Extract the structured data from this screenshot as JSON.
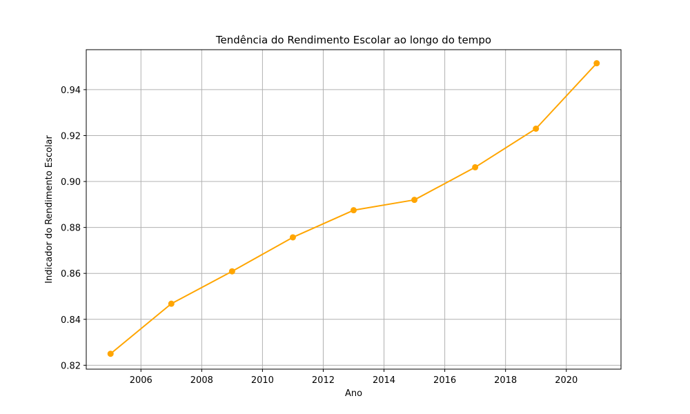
{
  "chart_data": {
    "type": "line",
    "title": "Tendência do Rendimento Escolar ao longo do tempo",
    "xlabel": "Ano",
    "ylabel": "Indicador do Rendimento Escolar",
    "x": [
      2005,
      2007,
      2009,
      2011,
      2013,
      2015,
      2017,
      2019,
      2021
    ],
    "series": [
      {
        "values": [
          0.825,
          0.8468,
          0.8609,
          0.8757,
          0.8875,
          0.892,
          0.9062,
          0.923,
          0.9515
        ],
        "color": "#ffa500",
        "marker": "circle"
      }
    ],
    "xlim": [
      2004.2,
      2021.8
    ],
    "ylim": [
      0.8183,
      0.9574
    ],
    "xticks": [
      2006,
      2008,
      2010,
      2012,
      2014,
      2016,
      2018,
      2020
    ],
    "yticks": [
      0.82,
      0.84,
      0.86,
      0.88,
      0.9,
      0.92,
      0.94
    ],
    "ytick_labels": [
      "0.82",
      "0.84",
      "0.86",
      "0.88",
      "0.90",
      "0.92",
      "0.94"
    ],
    "grid": true
  }
}
